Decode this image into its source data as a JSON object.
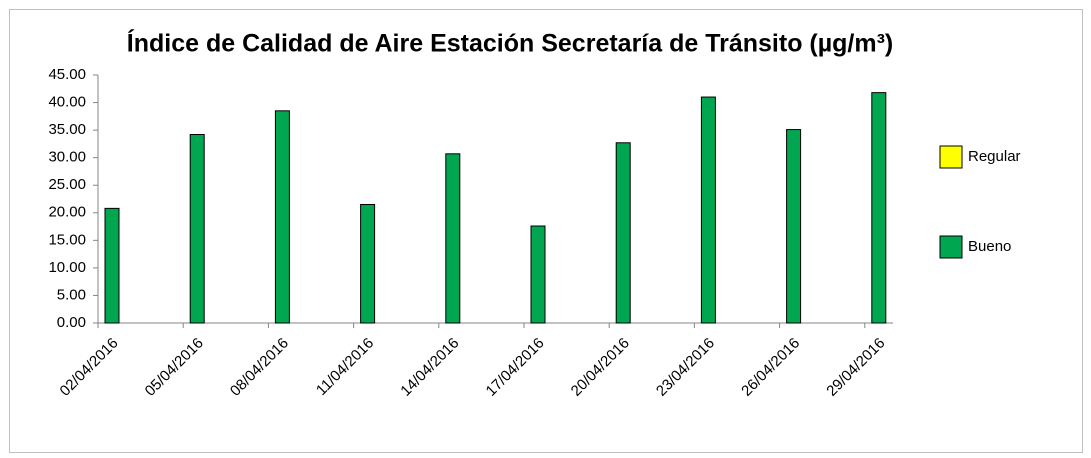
{
  "chart_data": {
    "type": "bar",
    "title": "Índice de Calidad de Aire Estación Secretaría de Tránsito (µg/m³)",
    "categories": [
      "02/04/2016",
      "05/04/2016",
      "08/04/2016",
      "11/04/2016",
      "14/04/2016",
      "17/04/2016",
      "20/04/2016",
      "23/04/2016",
      "26/04/2016",
      "29/04/2016"
    ],
    "series": [
      {
        "name": "Regular",
        "color": "#ffff00",
        "values": [
          null,
          null,
          null,
          null,
          null,
          null,
          null,
          null,
          null,
          null
        ]
      },
      {
        "name": "Bueno",
        "color": "#00a650",
        "values": [
          20.8,
          34.2,
          38.5,
          21.5,
          30.7,
          17.6,
          32.7,
          41.0,
          35.1,
          41.8
        ]
      }
    ],
    "ylim": [
      0,
      45
    ],
    "yticks": [
      {
        "value": 0,
        "label": "0.00"
      },
      {
        "value": 5,
        "label": "5.00"
      },
      {
        "value": 10,
        "label": "10.00"
      },
      {
        "value": 15,
        "label": "15.00"
      },
      {
        "value": 20,
        "label": "20.00"
      },
      {
        "value": 25,
        "label": "25.00"
      },
      {
        "value": 30,
        "label": "30.00"
      },
      {
        "value": 35,
        "label": "35.00"
      },
      {
        "value": 40,
        "label": "40.00"
      },
      {
        "value": 45,
        "label": "45.00"
      }
    ],
    "grid": false,
    "legend": "right"
  }
}
